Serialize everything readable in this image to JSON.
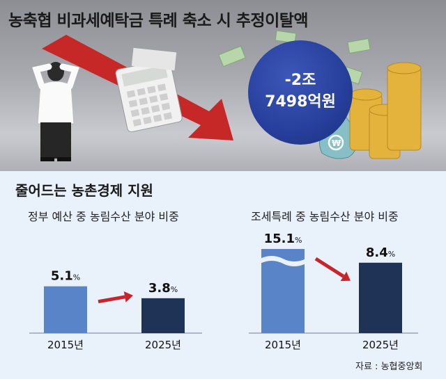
{
  "headline": "농축협 비과세예탁금 특례 축소 시 추정이탈액",
  "bubble": {
    "line1": "-2조",
    "line2": "7498억원"
  },
  "subhead": "줄어드는 농촌경제 지원",
  "source": "자료 : 농협중앙회",
  "colors": {
    "bar_2015": "#5a84c8",
    "bar_2025": "#1f3356",
    "arrow": "#c8242c",
    "background": "#e9f1fb"
  },
  "chart_data": [
    {
      "type": "bar",
      "title": "정부 예산 중 농림수산 분야 비중",
      "categories": [
        "2015년",
        "2025년"
      ],
      "values": [
        5.1,
        3.8
      ],
      "unit": "%"
    },
    {
      "type": "bar",
      "title": "조세특례 중 농림수산 분야 비중",
      "categories": [
        "2015년",
        "2025년"
      ],
      "values": [
        15.1,
        8.4
      ],
      "unit": "%",
      "axis_break": true
    }
  ]
}
